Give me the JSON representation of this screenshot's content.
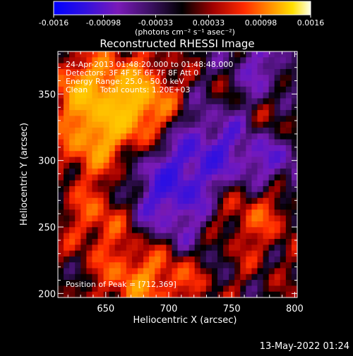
{
  "colorbar": {
    "ticks": [
      "-0.0016",
      "-0.00098",
      "-0.00033",
      "0.00033",
      "0.00098",
      "0.0016"
    ],
    "tick_values": [
      -0.0016,
      -0.00098,
      -0.00033,
      0.00033,
      0.00098,
      0.0016
    ],
    "range": [
      -0.0016,
      0.0016
    ],
    "unit_label": "(photons cm⁻² s⁻¹ asec⁻²)",
    "colormap": "blue-purple-black-red-orange-yellow-white"
  },
  "chart_data": {
    "type": "heatmap",
    "title": "Reconstructed RHESSI Image",
    "xlabel": "Heliocentric X (arcsec)",
    "ylabel": "Heliocentric Y (arcsec)",
    "xlim": [
      612,
      802
    ],
    "ylim": [
      197,
      382
    ],
    "x_ticks": [
      "650",
      "700",
      "750",
      "800"
    ],
    "x_tick_values": [
      650,
      700,
      750,
      800
    ],
    "y_ticks": [
      "200",
      "250",
      "300",
      "350"
    ],
    "y_tick_values": [
      200,
      250,
      300,
      350
    ],
    "annotations": [
      "24-Apr-2013 01:48:20.000 to 01:48:48.000",
      "Detectors: 3F 4F 5F 6F 7F 8F Att 0",
      "Energy Range: 25.0 - 50.0 keV",
      "Clean     Total counts: 1.20E+03"
    ],
    "peak_label": "Position of Peak = [712,369]",
    "peak_position": [
      712,
      369
    ]
  },
  "footer": {
    "timestamp": "13-May-2022 01:24"
  }
}
